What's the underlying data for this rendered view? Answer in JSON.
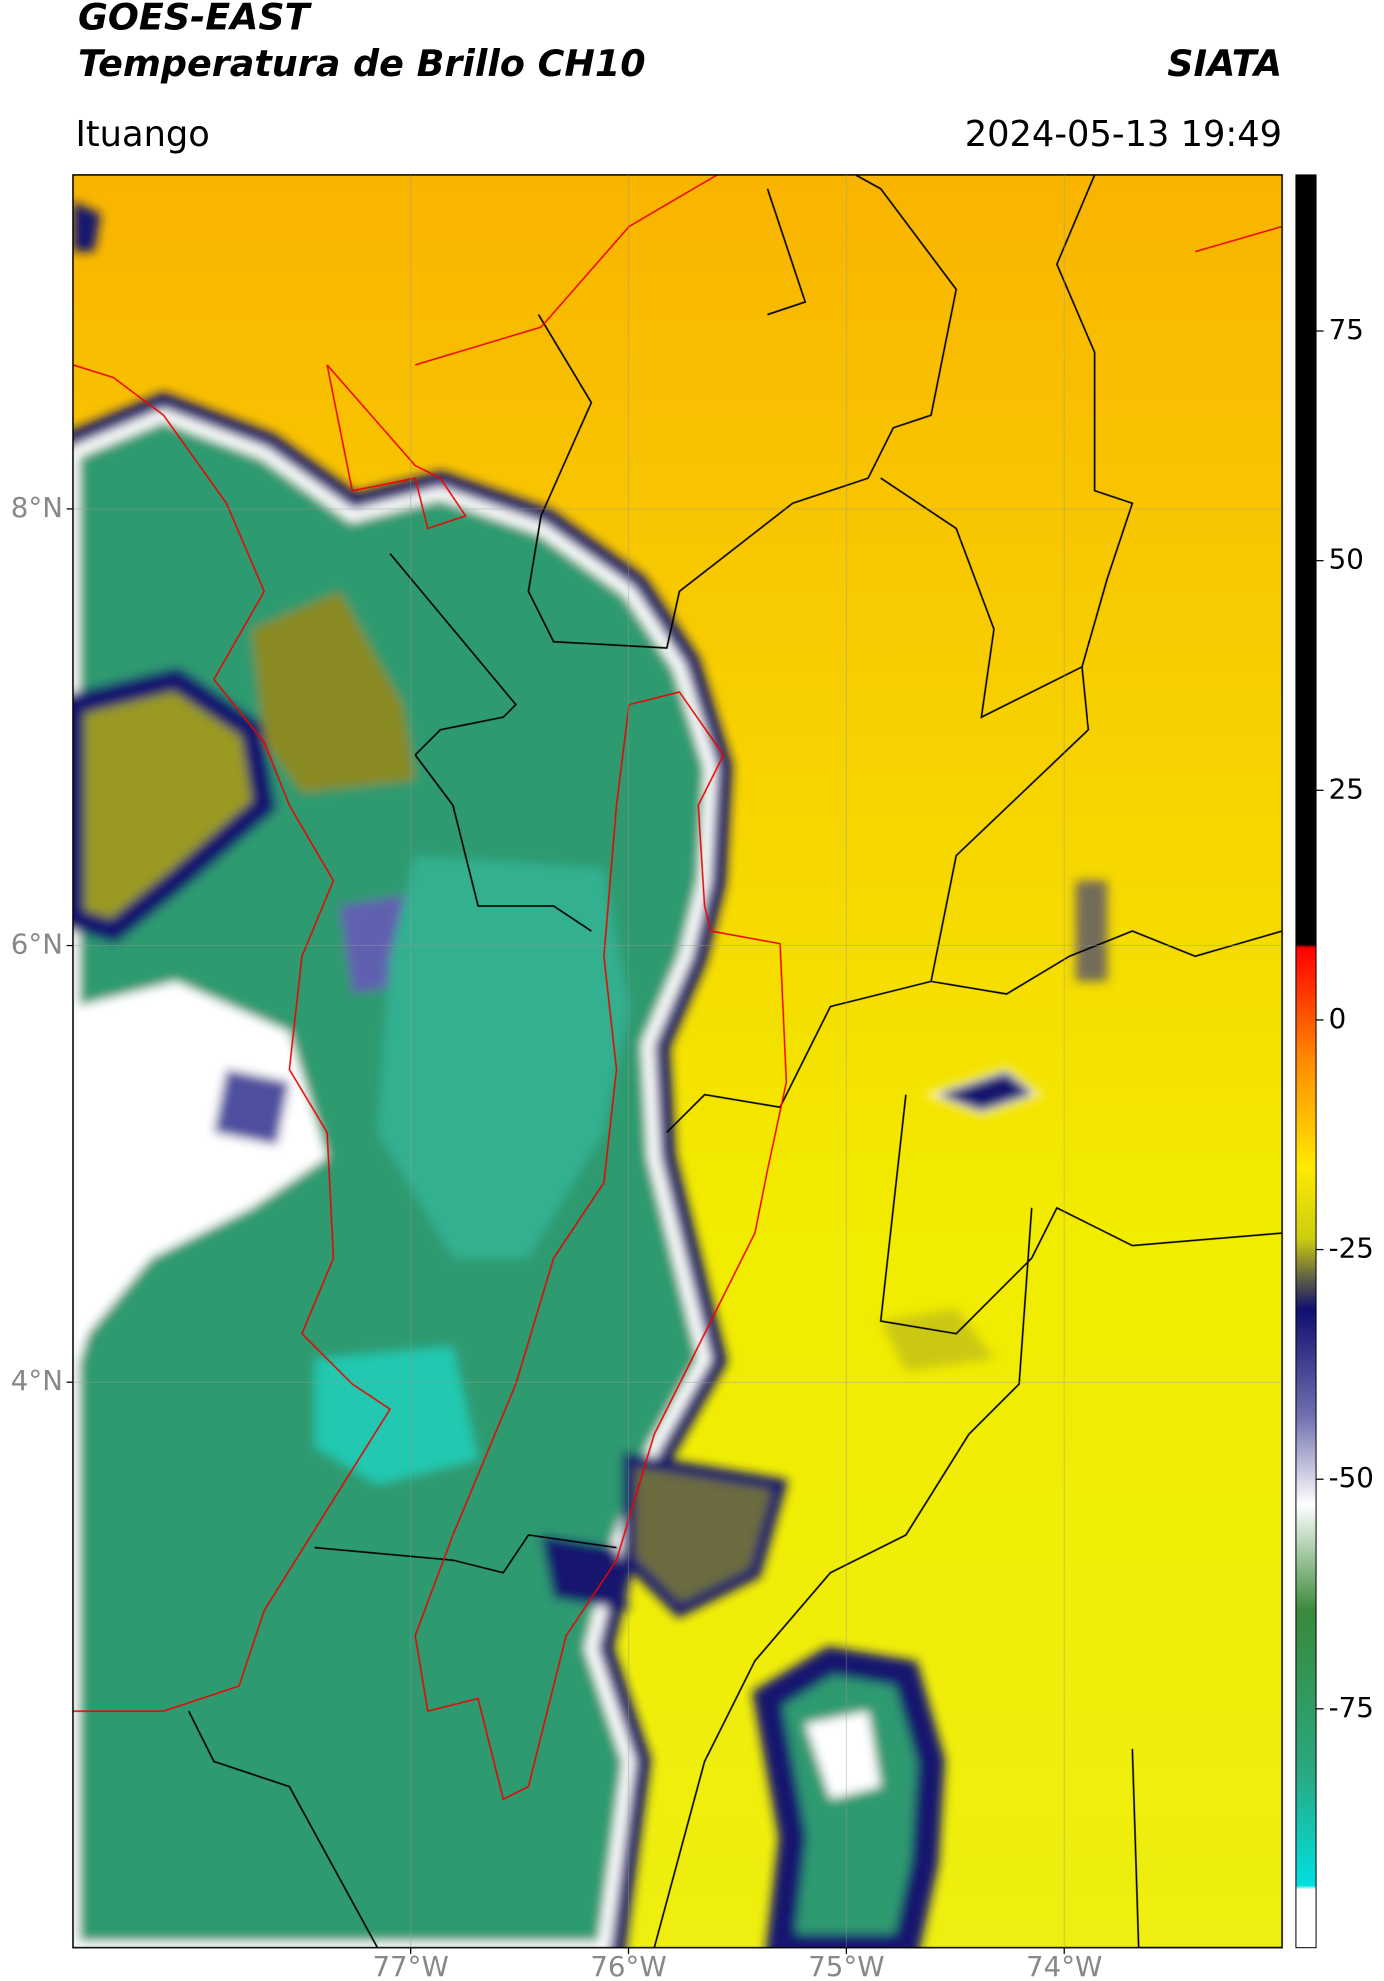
{
  "header": {
    "title": "GOES-EAST",
    "subtitle": "Temperatura de Brillo CH10",
    "agency": "SIATA",
    "location": "Ituango",
    "datetime": "2024-05-13 19:49"
  },
  "map": {
    "xlim": [
      -78.55,
      -73.0
    ],
    "ylim": [
      1.41,
      9.53
    ],
    "xticks": [
      {
        "value": -77,
        "label": "77°W"
      },
      {
        "value": -76,
        "label": "76°W"
      },
      {
        "value": -75,
        "label": "75°W"
      },
      {
        "value": -74,
        "label": "74°W"
      }
    ],
    "yticks": [
      {
        "value": 8,
        "label": "8°N"
      },
      {
        "value": 6,
        "label": "6°N"
      },
      {
        "value": 4,
        "label": "4°N"
      }
    ],
    "grid": true
  },
  "colorbar": {
    "lim": [
      -101,
      92
    ],
    "ticks": [
      75,
      50,
      25,
      0,
      -25,
      -50,
      -75
    ]
  }
}
